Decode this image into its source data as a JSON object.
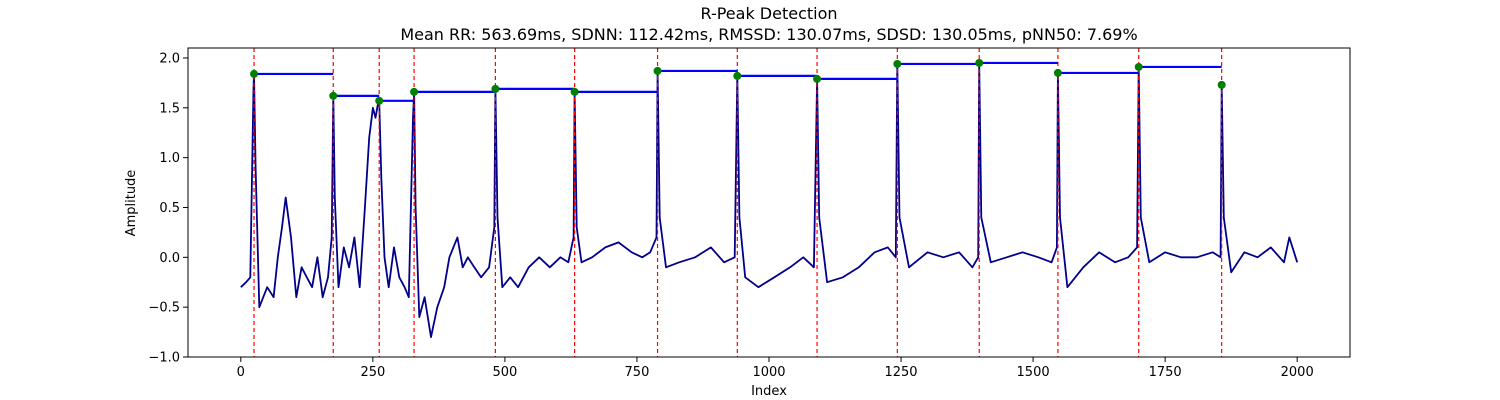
{
  "chart_data": {
    "type": "line",
    "title": "R-Peak Detection",
    "subtitle": "Mean RR: 563.69ms, SDNN: 112.42ms, RMSSD: 130.07ms, SDSD: 130.05ms, pNN50: 7.69%",
    "xlabel": "Index",
    "ylabel": "Amplitude",
    "xlim": [
      -100,
      2100
    ],
    "ylim": [
      -1.0,
      2.1
    ],
    "xticks": [
      0,
      250,
      500,
      750,
      1000,
      1250,
      1500,
      1750,
      2000
    ],
    "xtick_labels": [
      "0",
      "250",
      "500",
      "750",
      "1000",
      "1250",
      "1500",
      "1750",
      "2000"
    ],
    "yticks": [
      -1.0,
      -0.5,
      0.0,
      0.5,
      1.0,
      1.5,
      2.0
    ],
    "ytick_labels": [
      "−1.0",
      "−0.5",
      "0.0",
      "0.5",
      "1.0",
      "1.5",
      "2.0"
    ],
    "grid": false,
    "signal_color": "#00008b",
    "peak_line_color": "#ff0000",
    "peak_marker_color": "#008000",
    "rr_segment_color": "#0000ff",
    "peaks": [
      {
        "x": 25,
        "y": 1.84
      },
      {
        "x": 175,
        "y": 1.62
      },
      {
        "x": 262,
        "y": 1.57
      },
      {
        "x": 328,
        "y": 1.66
      },
      {
        "x": 482,
        "y": 1.69
      },
      {
        "x": 632,
        "y": 1.66
      },
      {
        "x": 789,
        "y": 1.87
      },
      {
        "x": 940,
        "y": 1.82
      },
      {
        "x": 1091,
        "y": 1.79
      },
      {
        "x": 1243,
        "y": 1.94
      },
      {
        "x": 1398,
        "y": 1.95
      },
      {
        "x": 1547,
        "y": 1.85
      },
      {
        "x": 1700,
        "y": 1.91
      },
      {
        "x": 1857,
        "y": 1.73
      }
    ],
    "signal": {
      "x": [
        0,
        10,
        18,
        24,
        25,
        28,
        35,
        50,
        62,
        70,
        78,
        85,
        95,
        105,
        115,
        125,
        135,
        145,
        155,
        165,
        172,
        175,
        178,
        185,
        195,
        205,
        215,
        225,
        235,
        243,
        250,
        255,
        260,
        262,
        266,
        272,
        280,
        290,
        300,
        310,
        318,
        326,
        328,
        331,
        338,
        348,
        360,
        372,
        385,
        395,
        410,
        420,
        430,
        442,
        455,
        470,
        480,
        482,
        486,
        495,
        510,
        525,
        545,
        565,
        585,
        605,
        620,
        630,
        632,
        636,
        645,
        665,
        690,
        715,
        740,
        760,
        775,
        787,
        789,
        793,
        805,
        830,
        860,
        890,
        915,
        935,
        940,
        944,
        955,
        980,
        1010,
        1040,
        1065,
        1085,
        1091,
        1095,
        1110,
        1140,
        1170,
        1200,
        1225,
        1240,
        1243,
        1247,
        1265,
        1300,
        1330,
        1360,
        1385,
        1396,
        1398,
        1402,
        1420,
        1450,
        1480,
        1510,
        1535,
        1545,
        1547,
        1551,
        1565,
        1595,
        1625,
        1655,
        1680,
        1697,
        1700,
        1704,
        1720,
        1750,
        1780,
        1810,
        1840,
        1855,
        1857,
        1861,
        1875,
        1900,
        1925,
        1950,
        1975,
        1985,
        2000
      ],
      "y": [
        -0.3,
        -0.25,
        -0.2,
        1.7,
        1.84,
        0.9,
        -0.5,
        -0.3,
        -0.4,
        0.0,
        0.3,
        0.6,
        0.2,
        -0.4,
        -0.1,
        -0.2,
        -0.3,
        0.0,
        -0.4,
        -0.2,
        0.2,
        1.62,
        0.6,
        -0.3,
        0.1,
        -0.1,
        0.2,
        -0.3,
        0.5,
        1.2,
        1.5,
        1.4,
        1.55,
        1.57,
        0.8,
        0.0,
        -0.3,
        0.1,
        -0.2,
        -0.3,
        -0.4,
        1.4,
        1.66,
        0.5,
        -0.6,
        -0.4,
        -0.8,
        -0.5,
        -0.3,
        0.0,
        0.2,
        -0.1,
        0.0,
        -0.1,
        -0.2,
        -0.1,
        0.3,
        1.69,
        0.4,
        -0.3,
        -0.2,
        -0.3,
        -0.1,
        0.0,
        -0.1,
        0.0,
        -0.05,
        0.2,
        1.66,
        0.3,
        -0.05,
        0.0,
        0.1,
        0.15,
        0.05,
        0.0,
        0.05,
        0.2,
        1.87,
        0.4,
        -0.1,
        -0.05,
        0.0,
        0.1,
        -0.05,
        0.0,
        1.82,
        0.4,
        -0.2,
        -0.3,
        -0.2,
        -0.1,
        0.0,
        -0.1,
        1.79,
        0.4,
        -0.25,
        -0.2,
        -0.1,
        0.05,
        0.1,
        0.0,
        1.94,
        0.4,
        -0.1,
        0.05,
        0.0,
        0.05,
        -0.1,
        0.0,
        1.95,
        0.4,
        -0.05,
        0.0,
        0.05,
        0.0,
        -0.05,
        0.1,
        1.85,
        0.4,
        -0.3,
        -0.1,
        0.05,
        -0.05,
        0.0,
        0.1,
        1.91,
        0.4,
        -0.05,
        0.05,
        0.0,
        0.0,
        0.05,
        0.0,
        1.73,
        0.4,
        -0.15,
        0.05,
        0.0,
        0.1,
        -0.05,
        0.2,
        -0.05
      ]
    }
  }
}
